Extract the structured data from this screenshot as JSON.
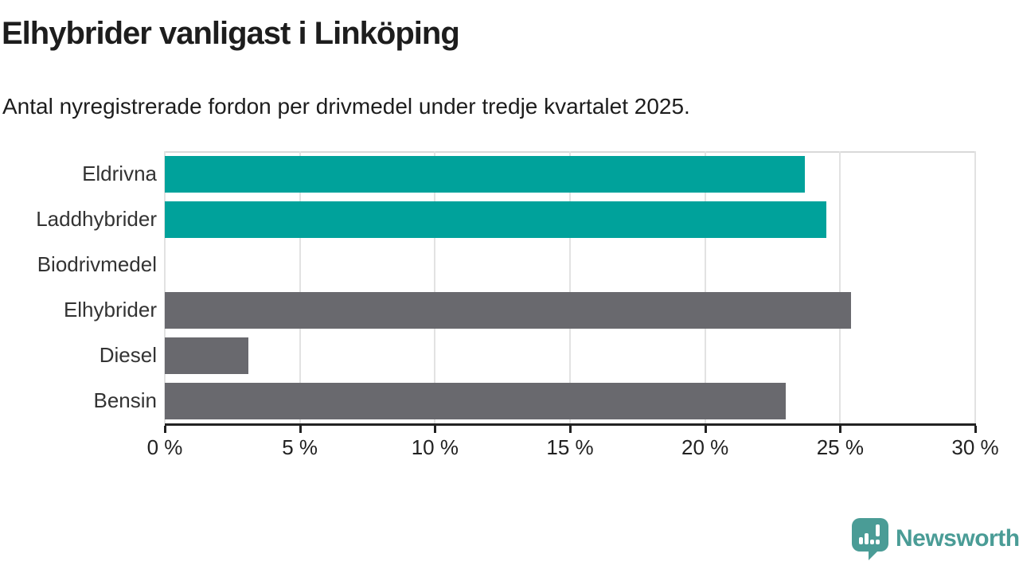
{
  "header": {
    "title": "Elhybrider vanligast i Linköping",
    "subtitle": "Antal nyregistrerade fordon per drivmedel under tredje kvartalet 2025."
  },
  "chart_data": {
    "type": "bar",
    "orientation": "horizontal",
    "title": "Elhybrider vanligast i Linköping",
    "subtitle": "Antal nyregistrerade fordon per drivmedel under tredje kvartalet 2025.",
    "categories": [
      "Eldrivna",
      "Laddhybrider",
      "Biodrivmedel",
      "Elhybrider",
      "Diesel",
      "Bensin"
    ],
    "values": [
      23.7,
      24.5,
      0,
      25.4,
      3.1,
      23.0
    ],
    "value_unit": "%",
    "bar_colors": [
      "#00a29b",
      "#00a29b",
      "#69696e",
      "#69696e",
      "#69696e",
      "#69696e"
    ],
    "xlabel": "",
    "ylabel": "",
    "xlim": [
      0,
      30
    ],
    "x_tick_values": [
      0,
      5,
      10,
      15,
      20,
      25,
      30
    ],
    "x_tick_labels": [
      "0 %",
      "5 %",
      "10 %",
      "15 %",
      "20 %",
      "25 %",
      "30 %"
    ],
    "grid": true,
    "legend": false
  },
  "colors": {
    "highlight_bar": "#00a29b",
    "default_bar": "#69696e",
    "grid_line": "#e2e2e2",
    "axis_line": "#222222",
    "text": "#1d1d1d",
    "brand_teal": "#4a9c96"
  },
  "footer": {
    "brand_name": "Newsworthy",
    "logo_icon": "newsworthy-speech-bubble-bar-chart-icon"
  }
}
